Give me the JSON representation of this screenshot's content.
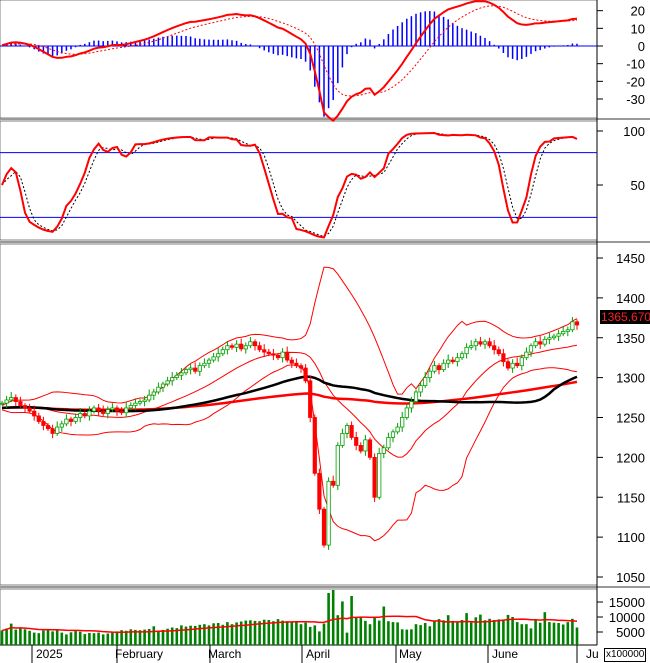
{
  "chart_data": [
    {
      "type": "line",
      "panel": "macd",
      "y_ticks": [
        20,
        10,
        0,
        -10,
        -20,
        -30
      ],
      "ylim": [
        -38,
        28
      ],
      "series_colors": {
        "macd": "#ff0000",
        "signal": "#ff0000",
        "histogram": "#0000ff",
        "zero_line": "#0000ff"
      }
    },
    {
      "type": "line",
      "panel": "stochastic",
      "y_ticks": [
        100,
        50
      ],
      "ylim": [
        0,
        105
      ],
      "reference_lines": [
        80,
        20
      ],
      "series_colors": {
        "k": "#ff0000",
        "d": "#000000",
        "reference": "#0000ff"
      }
    },
    {
      "type": "candlestick",
      "panel": "price",
      "y_ticks": [
        1450,
        1400,
        1350,
        1300,
        1250,
        1200,
        1150,
        1100,
        1050
      ],
      "ylim": [
        1040,
        1465
      ],
      "last_price_label": "1365.670",
      "overlays": [
        "bollinger-bands",
        "moving-average-black",
        "moving-average-red"
      ],
      "closes": [
        1268,
        1272,
        1275,
        1270,
        1265,
        1262,
        1258,
        1252,
        1245,
        1240,
        1236,
        1230,
        1238,
        1242,
        1248,
        1245,
        1250,
        1255,
        1252,
        1258,
        1262,
        1258,
        1255,
        1260,
        1262,
        1258,
        1256,
        1262,
        1265,
        1268,
        1270,
        1272,
        1278,
        1282,
        1288,
        1292,
        1296,
        1300,
        1303,
        1306,
        1310,
        1312,
        1308,
        1315,
        1318,
        1322,
        1326,
        1330,
        1335,
        1340,
        1338,
        1342,
        1336,
        1340,
        1345,
        1340,
        1335,
        1332,
        1330,
        1328,
        1325,
        1332,
        1322,
        1318,
        1315,
        1312,
        1296,
        1250,
        1180,
        1135,
        1090,
        1170,
        1165,
        1215,
        1230,
        1240,
        1225,
        1215,
        1208,
        1222,
        1200,
        1150,
        1205,
        1212,
        1225,
        1232,
        1238,
        1250,
        1262,
        1270,
        1282,
        1290,
        1300,
        1308,
        1315,
        1310,
        1318,
        1322,
        1320,
        1325,
        1330,
        1338,
        1340,
        1345,
        1342,
        1345,
        1340,
        1335,
        1330,
        1320,
        1312,
        1318,
        1315,
        1325,
        1332,
        1340,
        1345,
        1342,
        1348,
        1350,
        1352,
        1355,
        1358,
        1360,
        1370,
        1366
      ],
      "colors": {
        "up": "#00a000",
        "down": "#ff0000",
        "bands": "#ff0000",
        "ma_black": "#000000",
        "ma_red": "#ff0000"
      }
    },
    {
      "type": "bar",
      "panel": "volume",
      "y_ticks": [
        15000,
        10000,
        5000
      ],
      "unit_label": "x100000",
      "values": [
        5500,
        6200,
        7800,
        5800,
        6500,
        5900,
        5400,
        4800,
        4600,
        5500,
        5800,
        5200,
        5700,
        4800,
        4200,
        4900,
        5300,
        5100,
        4300,
        4700,
        4600,
        4800,
        4200,
        4500,
        4800,
        5200,
        5600,
        5400,
        5900,
        5700,
        5600,
        5800,
        6000,
        6900,
        5400,
        5700,
        6100,
        6500,
        6300,
        7200,
        6800,
        7100,
        7000,
        7400,
        7600,
        7200,
        7900,
        8000,
        7400,
        8300,
        7600,
        8200,
        8500,
        8800,
        8900,
        8700,
        8600,
        9100,
        9000,
        8600,
        9300,
        8800,
        8600,
        8400,
        8200,
        7600,
        8100,
        6700,
        7200,
        5200,
        7800,
        18000,
        19000,
        10600,
        15200,
        4800,
        17000,
        9800,
        9900,
        8700,
        7600,
        9900,
        8800,
        13500,
        8600,
        8300,
        8200,
        5900,
        5800,
        5900,
        7600,
        7300,
        8000,
        6900,
        8900,
        9300,
        8900,
        10600,
        8700,
        8400,
        9000,
        11300,
        8200,
        9900,
        10800,
        8900,
        9400,
        9000,
        9200,
        8900,
        10700,
        10000,
        8300,
        7600,
        7600,
        6200,
        9000,
        8100,
        11600,
        8300,
        8100,
        8000,
        7500,
        8300,
        9400,
        6500
      ],
      "colors": {
        "bars": "#008000",
        "average": "#ff0000"
      }
    }
  ],
  "x_axis": {
    "labels": [
      "2025",
      "February",
      "March",
      "April",
      "May",
      "June",
      "Ju"
    ]
  }
}
